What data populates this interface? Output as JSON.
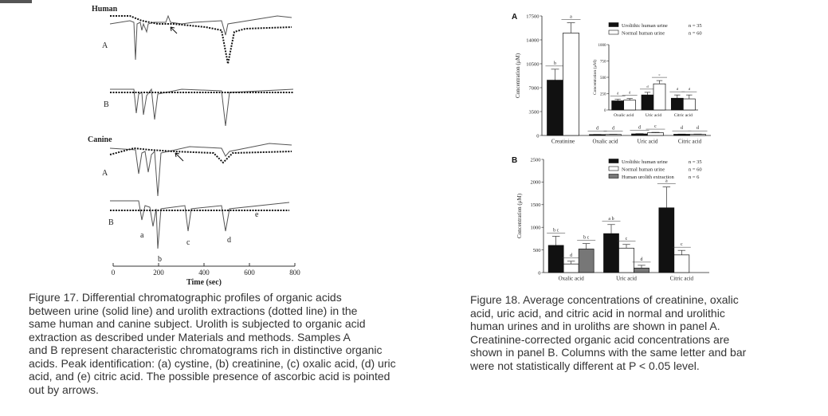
{
  "figure17": {
    "panel_human_label": "Human",
    "panel_canine_label": "Canine",
    "trace_labels": [
      "A",
      "B",
      "A",
      "B"
    ],
    "peak_labels": [
      "a",
      "b",
      "c",
      "d",
      "e"
    ],
    "x_axis": {
      "label": "Time (sec)",
      "ticks": [
        "0",
        "200",
        "400",
        "600",
        "800"
      ]
    },
    "caption_lines": [
      "Figure 17. Differential chromatographic profiles of organic acids",
      "between urine (solid line) and urolith extractions (dotted line) in the",
      "same human and canine subject. Urolith is subjected to organic acid",
      "extraction as described under Materials and methods. Samples A",
      " and B represent characteristic chromatograms rich in distinctive organic",
      "acids. Peak identification: (a) cystine, (b) creatinine, (c) oxalic acid, (d) uric",
      "acid, and (e) citric acid. The possible presence of ascorbic acid is pointed",
      "out by arrows."
    ]
  },
  "figure18": {
    "caption_lines": [
      "Figure 18. Average concentrations of creatinine, oxalic",
      "acid, uric acid, and citric acid in normal and urolithic",
      "human urines and in uroliths are shown in panel A.",
      " Creatinine-corrected organic acid concentrations are",
      "shown in panel B. Columns with the same letter and bar",
      "were not statistically different at P < 0.05 level."
    ]
  },
  "chart_data": [
    {
      "type": "bar",
      "panel": "A",
      "ylabel": "Concentration (μM)",
      "ylim": [
        0,
        17500
      ],
      "yticks": [
        "0",
        "3500",
        "7000",
        "10500",
        "14000",
        "17500"
      ],
      "categories": [
        "Creatinine",
        "Oxalic acid",
        "Uric acid",
        "Citric acid"
      ],
      "series": [
        {
          "name": "Urolithic human urine",
          "n": "n = 35",
          "color": "#111111",
          "values": [
            8100,
            140,
            230,
            180
          ],
          "errors": [
            1600,
            20,
            40,
            30
          ],
          "letters": [
            "b",
            "d",
            "d",
            "d"
          ]
        },
        {
          "name": "Normal human urine",
          "n": "n = 60",
          "color": "#ffffff",
          "values": [
            15000,
            150,
            400,
            170
          ],
          "errors": [
            1500,
            20,
            60,
            40
          ],
          "letters": [
            "a",
            "d",
            "c",
            "d"
          ]
        }
      ],
      "legend_position": "top-right",
      "inset": {
        "ylabel": "Concentration (μM)",
        "ylim": [
          0,
          1000
        ],
        "yticks": [
          "0",
          "250",
          "500",
          "750",
          "1000"
        ],
        "categories": [
          "Oxalic acid",
          "Uric acid",
          "Citric acid"
        ],
        "series": [
          {
            "name": "Urolithic human urine",
            "values": [
              140,
              230,
              180
            ],
            "errors": [
              25,
              40,
              50
            ],
            "letters": [
              "d",
              "d",
              "d"
            ]
          },
          {
            "name": "Normal human urine",
            "values": [
              150,
              400,
              170
            ],
            "errors": [
              25,
              50,
              60
            ],
            "letters": [
              "d",
              "c",
              "d"
            ]
          }
        ]
      }
    },
    {
      "type": "bar",
      "panel": "B",
      "ylabel": "Concentration (μM)",
      "ylim": [
        0,
        2500
      ],
      "yticks": [
        "0",
        "500",
        "1000",
        "1500",
        "2000",
        "2500"
      ],
      "categories": [
        "Oxalic acid",
        "Uric acid",
        "Citric acid"
      ],
      "series": [
        {
          "name": "Urolithic human urine",
          "n": "n = 35",
          "color": "#111111",
          "values": [
            600,
            860,
            1430
          ],
          "errors": [
            200,
            200,
            460
          ],
          "letters": [
            "b c",
            "a b",
            "a"
          ]
        },
        {
          "name": "Normal human urine",
          "n": "n = 60",
          "color": "#ffffff",
          "values": [
            190,
            540,
            390
          ],
          "errors": [
            60,
            80,
            100
          ],
          "letters": [
            "d",
            "c",
            "c"
          ]
        },
        {
          "name": "Human urolith extraction",
          "n": "n = 6",
          "color": "#777777",
          "values": [
            520,
            100,
            0
          ],
          "errors": [
            120,
            60,
            0
          ],
          "letters": [
            "b c",
            "d",
            ""
          ]
        }
      ],
      "legend_position": "top-right"
    }
  ]
}
